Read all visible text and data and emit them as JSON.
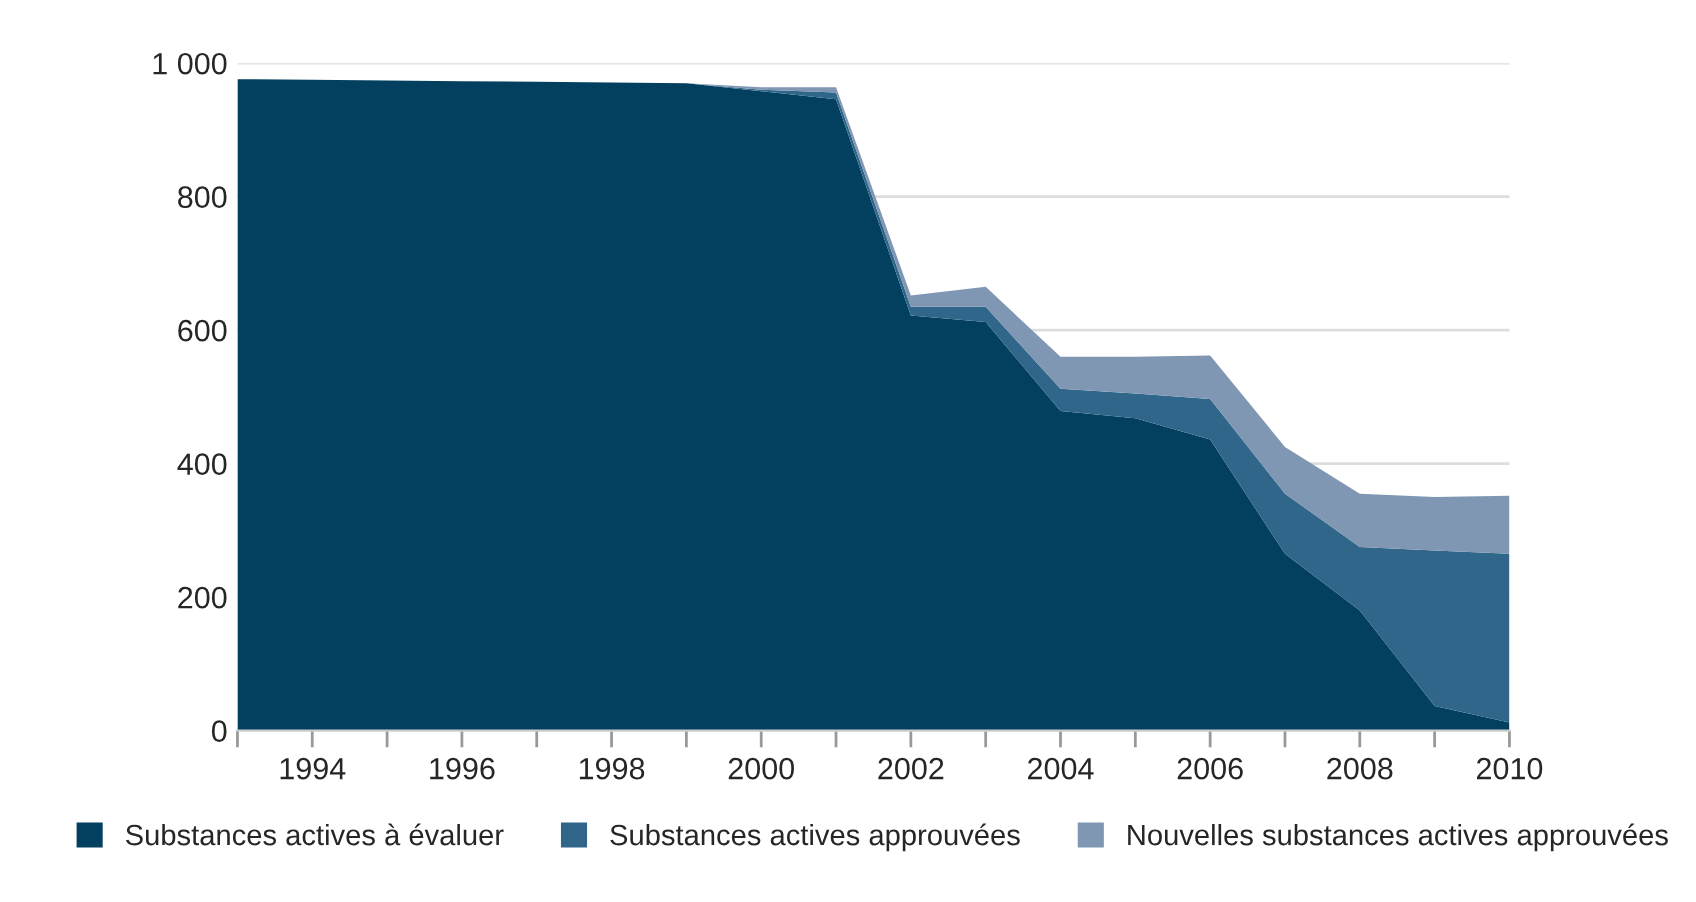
{
  "chart_data": {
    "type": "area",
    "stacked": true,
    "x": [
      1993,
      1994,
      1995,
      1996,
      1997,
      1998,
      1999,
      2000,
      2001,
      2002,
      2003,
      2004,
      2005,
      2006,
      2007,
      2008,
      2009,
      2010
    ],
    "series": [
      {
        "name": "Substances actives à évaluer",
        "color": "#03405f",
        "values": [
          976,
          975,
          974,
          973,
          972,
          971,
          970,
          958,
          946,
          622,
          612,
          479,
          468,
          436,
          265,
          180,
          37,
          12
        ]
      },
      {
        "name": "Substances actives approuvées",
        "color": "#2f6689",
        "values": [
          0,
          0,
          0,
          0,
          0,
          0,
          0,
          2,
          10,
          13,
          23,
          33,
          37,
          61,
          90,
          95,
          233,
          253
        ]
      },
      {
        "name": "Nouvelles substances actives approuvées",
        "color": "#7f97b3",
        "values": [
          0,
          0,
          0,
          0,
          0,
          0,
          0,
          4,
          8,
          17,
          30,
          48,
          55,
          65,
          70,
          80,
          80,
          87
        ]
      }
    ],
    "xlim": [
      1993,
      2010
    ],
    "xticks": [
      {
        "value": 1993,
        "label": null
      },
      1994,
      {
        "value": 1995,
        "label": null
      },
      1996,
      {
        "value": 1997,
        "label": null
      },
      1998,
      {
        "value": 1999,
        "label": null
      },
      2000,
      {
        "value": 2001,
        "label": null
      },
      2002,
      {
        "value": 2003,
        "label": null
      },
      2004,
      {
        "value": 2005,
        "label": null
      },
      2006,
      {
        "value": 2007,
        "label": null
      },
      2008,
      {
        "value": 2009,
        "label": null
      },
      2010
    ],
    "ylim": [
      0,
      1000
    ],
    "yticks": [
      0,
      200,
      400,
      600,
      800,
      {
        "value": 1000,
        "label": "1 000"
      }
    ],
    "grid": "y",
    "legend": "bottom"
  }
}
